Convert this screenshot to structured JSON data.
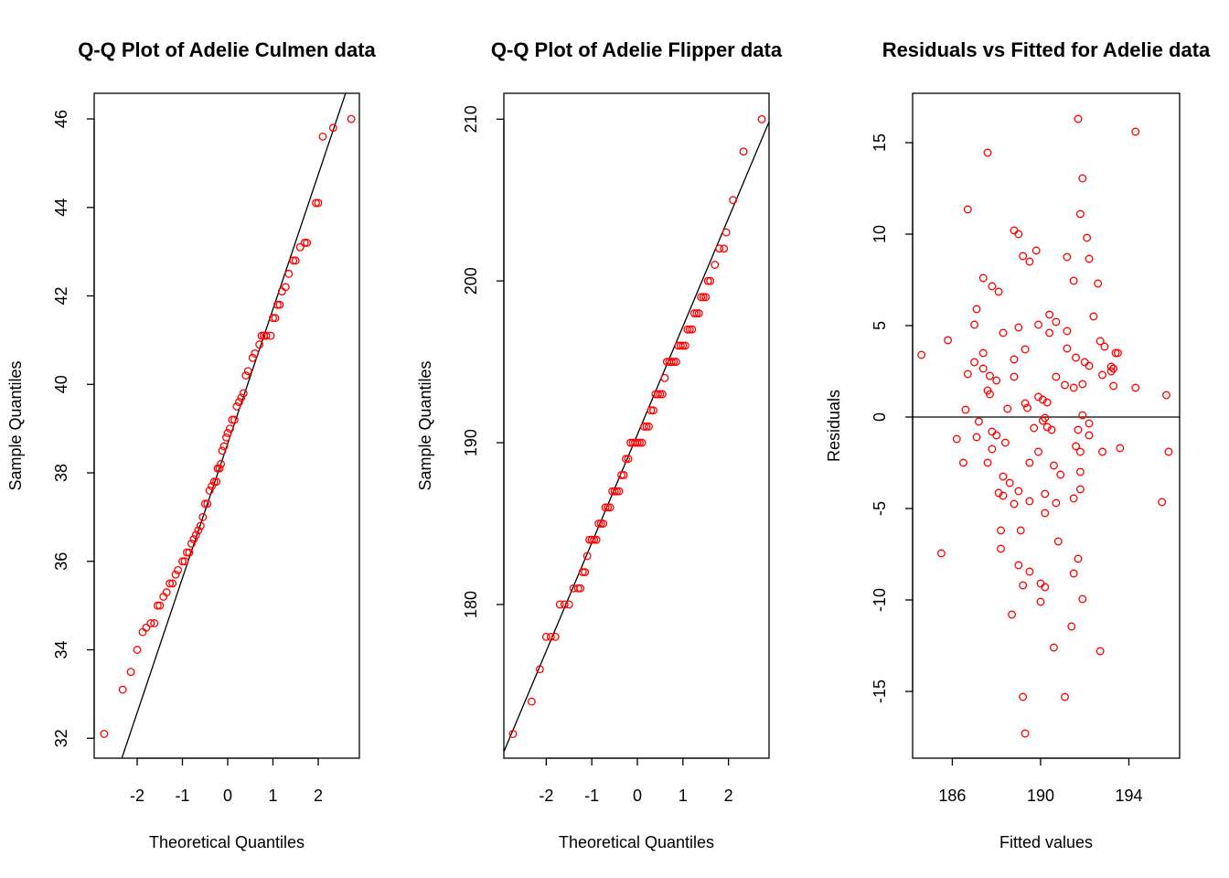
{
  "chart_data": [
    {
      "type": "scatter",
      "title": "Q-Q Plot of Adelie Culmen data",
      "x_label": "Theoretical Quantiles",
      "y_label": "Sample Quantiles",
      "color": "#ff0000",
      "xlim": [
        -2.95,
        2.91
      ],
      "ylim": [
        31.55,
        46.58
      ],
      "xticks": [
        -2,
        -1,
        0,
        1,
        2
      ],
      "yticks": [
        32,
        34,
        36,
        38,
        40,
        42,
        44,
        46
      ],
      "reference_line": {
        "intercept": 38.66,
        "slope": 3.04
      },
      "x": [
        -2.73,
        -2.32,
        -2.14,
        -2.0,
        -1.88,
        -1.8,
        -1.7,
        -1.62,
        -1.55,
        -1.5,
        -1.42,
        -1.35,
        -1.28,
        -1.22,
        -1.15,
        -1.1,
        -1.0,
        -0.95,
        -0.9,
        -0.85,
        -0.8,
        -0.75,
        -0.7,
        -0.65,
        -0.6,
        -0.55,
        -0.5,
        -0.45,
        -0.4,
        -0.35,
        -0.3,
        -0.25,
        -0.22,
        -0.18,
        -0.15,
        -0.12,
        -0.08,
        -0.03,
        0.0,
        0.05,
        0.1,
        0.15,
        0.2,
        0.25,
        0.3,
        0.35,
        0.4,
        0.45,
        0.55,
        0.6,
        0.7,
        0.75,
        0.8,
        0.85,
        0.95,
        1.0,
        1.05,
        1.1,
        1.15,
        1.2,
        1.28,
        1.35,
        1.45,
        1.5,
        1.6,
        1.7,
        1.75,
        1.95,
        2.0,
        2.1,
        2.33,
        2.73
      ],
      "values": [
        32.1,
        33.1,
        33.5,
        34.0,
        34.4,
        34.5,
        34.6,
        34.6,
        35.0,
        35.0,
        35.2,
        35.3,
        35.5,
        35.5,
        35.7,
        35.8,
        36.0,
        36.0,
        36.2,
        36.2,
        36.4,
        36.5,
        36.6,
        36.7,
        36.8,
        37.0,
        37.3,
        37.3,
        37.6,
        37.7,
        37.8,
        37.8,
        38.1,
        38.1,
        38.2,
        38.5,
        38.6,
        38.8,
        38.9,
        39.0,
        39.2,
        39.2,
        39.5,
        39.6,
        39.7,
        39.8,
        40.2,
        40.3,
        40.6,
        40.7,
        40.9,
        41.1,
        41.1,
        41.1,
        41.1,
        41.5,
        41.5,
        41.8,
        41.8,
        42.1,
        42.2,
        42.5,
        42.8,
        42.8,
        43.1,
        43.2,
        43.2,
        44.1,
        44.1,
        45.6,
        45.8,
        46.0
      ]
    },
    {
      "type": "scatter",
      "title": "Q-Q Plot of Adelie Flipper data",
      "x_label": "Theoretical Quantiles",
      "y_label": "Sample Quantiles",
      "color": "#ff0000",
      "xlim": [
        -2.93,
        2.89
      ],
      "ylim": [
        170.5,
        211.6
      ],
      "xticks": [
        -2,
        -1,
        0,
        1,
        2
      ],
      "yticks": [
        180,
        190,
        200,
        210
      ],
      "reference_line": {
        "intercept": 190.5,
        "slope": 6.69
      },
      "x": [
        -2.73,
        -2.32,
        -2.14,
        -2.0,
        -1.9,
        -1.8,
        -1.7,
        -1.6,
        -1.5,
        -1.4,
        -1.3,
        -1.25,
        -1.2,
        -1.15,
        -1.1,
        -1.05,
        -1.0,
        -0.95,
        -0.9,
        -0.85,
        -0.8,
        -0.75,
        -0.7,
        -0.65,
        -0.6,
        -0.55,
        -0.5,
        -0.45,
        -0.4,
        -0.35,
        -0.3,
        -0.25,
        -0.2,
        -0.15,
        -0.1,
        -0.05,
        0.0,
        0.05,
        0.1,
        0.15,
        0.2,
        0.25,
        0.3,
        0.35,
        0.4,
        0.45,
        0.5,
        0.55,
        0.6,
        0.65,
        0.7,
        0.75,
        0.8,
        0.85,
        0.9,
        0.95,
        1.0,
        1.05,
        1.1,
        1.15,
        1.2,
        1.25,
        1.3,
        1.35,
        1.4,
        1.45,
        1.5,
        1.55,
        1.6,
        1.7,
        1.8,
        1.9,
        1.95,
        2.1,
        2.33,
        2.73
      ],
      "values": [
        172,
        174,
        176,
        178,
        178,
        178,
        180,
        180,
        180,
        181,
        181,
        181,
        182,
        182,
        183,
        184,
        184,
        184,
        184,
        185,
        185,
        185,
        186,
        186,
        186,
        187,
        187,
        187,
        187,
        188,
        188,
        189,
        189,
        190,
        190,
        190,
        190,
        190,
        190,
        191,
        191,
        191,
        192,
        192,
        193,
        193,
        193,
        193,
        194,
        195,
        195,
        195,
        195,
        195,
        196,
        196,
        196,
        196,
        197,
        197,
        197,
        198,
        198,
        198,
        199,
        199,
        199,
        200,
        200,
        201,
        202,
        202,
        203,
        205,
        208,
        210
      ]
    },
    {
      "type": "scatter",
      "title": "Residuals vs Fitted for Adelie data",
      "x_label": "Fitted values",
      "y_label": "Residuals",
      "color": "#ff0000",
      "xlim": [
        184.2,
        196.3
      ],
      "ylim": [
        -18.65,
        17.7
      ],
      "xticks": [
        186,
        190,
        194
      ],
      "yticks": [
        -15,
        -10,
        -5,
        0,
        5,
        10,
        15
      ],
      "hline": 0,
      "x": [
        184.6,
        185.5,
        185.8,
        186.2,
        186.5,
        186.6,
        186.7,
        186.7,
        187.0,
        187.1,
        187.0,
        187.2,
        187.1,
        187.4,
        187.4,
        187.4,
        187.6,
        187.6,
        187.7,
        187.6,
        187.7,
        187.8,
        187.8,
        187.8,
        188.0,
        188.1,
        188.0,
        188.1,
        188.2,
        188.2,
        188.3,
        188.3,
        188.4,
        188.3,
        188.5,
        188.6,
        188.7,
        188.8,
        188.8,
        188.8,
        189.0,
        188.8,
        189.0,
        189.0,
        189.1,
        189.0,
        189.2,
        189.3,
        189.3,
        189.2,
        189.2,
        189.3,
        189.5,
        189.4,
        189.5,
        189.5,
        189.5,
        189.7,
        189.9,
        189.8,
        189.9,
        189.9,
        190.0,
        190.1,
        190.1,
        190.0,
        190.2,
        190.2,
        190.2,
        190.2,
        190.3,
        190.3,
        190.4,
        190.5,
        190.4,
        190.6,
        190.6,
        190.7,
        190.7,
        190.7,
        190.8,
        190.9,
        191.1,
        191.1,
        191.2,
        191.2,
        191.2,
        191.5,
        191.4,
        191.5,
        191.5,
        191.5,
        191.6,
        191.7,
        191.6,
        191.7,
        191.7,
        191.8,
        191.9,
        191.8,
        191.9,
        191.8,
        191.8,
        191.9,
        191.9,
        192.0,
        192.1,
        192.2,
        192.2,
        192.2,
        192.2,
        192.4,
        192.6,
        192.7,
        192.7,
        192.8,
        192.8,
        192.9,
        193.2,
        193.3,
        193.4,
        193.5,
        193.6,
        194.3,
        194.3,
        195.5,
        195.7,
        195.8,
        193.3,
        193.2
      ],
      "values": [
        3.4,
        -7.45,
        4.2,
        -1.2,
        -2.5,
        0.4,
        11.35,
        2.35,
        5.05,
        5.9,
        3.0,
        -0.25,
        -1.1,
        7.6,
        3.5,
        2.65,
        14.45,
        1.45,
        1.25,
        -2.5,
        2.25,
        7.15,
        -0.8,
        -1.75,
        2.0,
        6.85,
        -1.0,
        -4.15,
        -6.2,
        -7.2,
        -3.25,
        4.6,
        -1.4,
        -4.3,
        0.45,
        -3.6,
        -10.8,
        3.15,
        2.2,
        10.2,
        10.0,
        -4.75,
        4.9,
        -4.05,
        -6.2,
        -8.1,
        8.8,
        3.7,
        0.75,
        -9.2,
        -15.3,
        -17.3,
        8.5,
        0.5,
        -8.45,
        -4.6,
        -2.5,
        -0.6,
        -1.9,
        9.1,
        1.1,
        5.05,
        -10.1,
        -0.2,
        0.95,
        -9.1,
        -0.05,
        -5.25,
        -4.2,
        -9.3,
        0.8,
        -0.55,
        5.6,
        -0.7,
        4.6,
        -12.6,
        -2.65,
        5.2,
        2.2,
        -4.7,
        -6.8,
        -3.15,
        1.75,
        -15.3,
        8.75,
        4.7,
        3.75,
        1.6,
        -11.45,
        -4.45,
        -8.55,
        7.45,
        -1.6,
        16.3,
        3.25,
        -0.7,
        -7.75,
        11.1,
        13.05,
        -1.9,
        1.8,
        -3.95,
        -3.0,
        -9.95,
        0.1,
        3.0,
        9.8,
        8.65,
        -1.0,
        2.8,
        -0.35,
        5.5,
        7.3,
        -12.8,
        4.15,
        -1.9,
        2.3,
        3.85,
        2.75,
        1.7,
        3.5,
        3.5,
        -1.7,
        15.6,
        1.6,
        -4.65,
        1.2,
        -1.9,
        2.65,
        2.5
      ]
    }
  ]
}
